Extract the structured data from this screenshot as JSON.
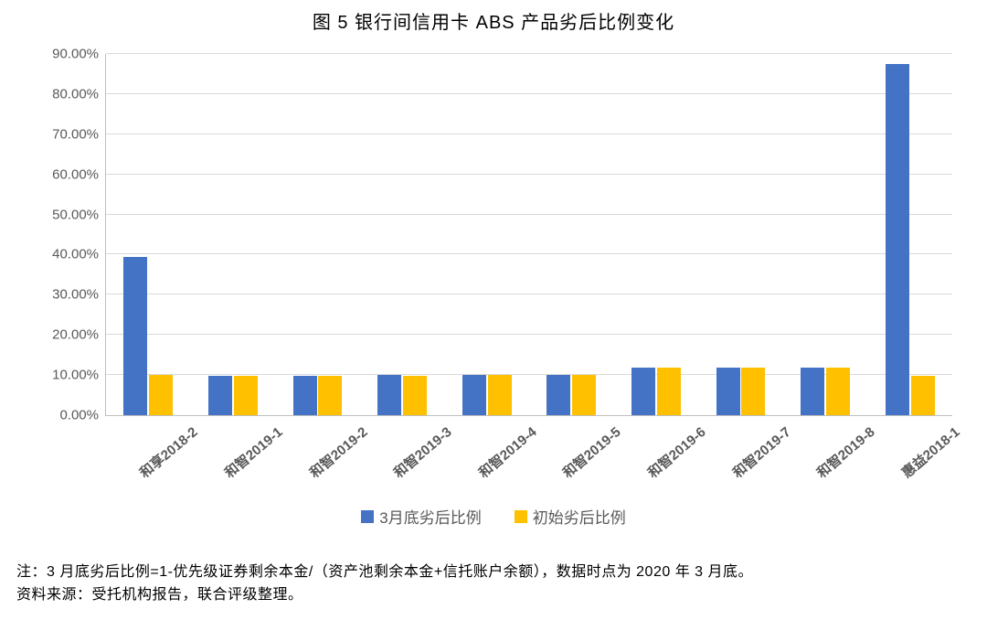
{
  "title": "图 5    银行间信用卡 ABS 产品劣后比例变化",
  "chart": {
    "type": "bar",
    "background_color": "#ffffff",
    "grid_color": "#d9d9d9",
    "axis_color": "#bfbfbf",
    "tick_label_color": "#595959",
    "tick_label_fontsize": 15,
    "title_fontsize": 20,
    "ylim": [
      0,
      90
    ],
    "ytick_step": 10,
    "yticks": [
      0,
      10,
      20,
      30,
      40,
      50,
      60,
      70,
      80,
      90
    ],
    "ytick_labels": [
      "0.00%",
      "10.00%",
      "20.00%",
      "30.00%",
      "40.00%",
      "50.00%",
      "60.00%",
      "70.00%",
      "80.00%",
      "90.00%"
    ],
    "categories": [
      "和享2018-2",
      "和智2019-1",
      "和智2019-2",
      "和智2019-3",
      "和智2019-4",
      "和智2019-5",
      "和智2019-6",
      "和智2019-7",
      "和智2019-8",
      "惠益2018-1"
    ],
    "series": [
      {
        "name": "3月底劣后比例",
        "color": "#4472c4",
        "values": [
          39.5,
          9.7,
          9.7,
          10.0,
          10.0,
          10.0,
          11.8,
          11.8,
          11.8,
          87.5
        ]
      },
      {
        "name": "初始劣后比例",
        "color": "#ffc000",
        "values": [
          10.0,
          9.7,
          9.7,
          9.7,
          10.0,
          10.0,
          11.8,
          11.8,
          11.8,
          9.7
        ]
      }
    ],
    "bar_width_ratio": 0.28,
    "bar_gap_ratio": 0.02,
    "xlabel_rotation_deg": -40,
    "legend_position": "bottom",
    "legend_fontsize": 17
  },
  "footnote1": "注：3 月底劣后比例=1-优先级证券剩余本金/（资产池剩余本金+信托账户余额），数据时点为 2020 年 3 月底。",
  "footnote2": "资料来源：受托机构报告，联合评级整理。"
}
